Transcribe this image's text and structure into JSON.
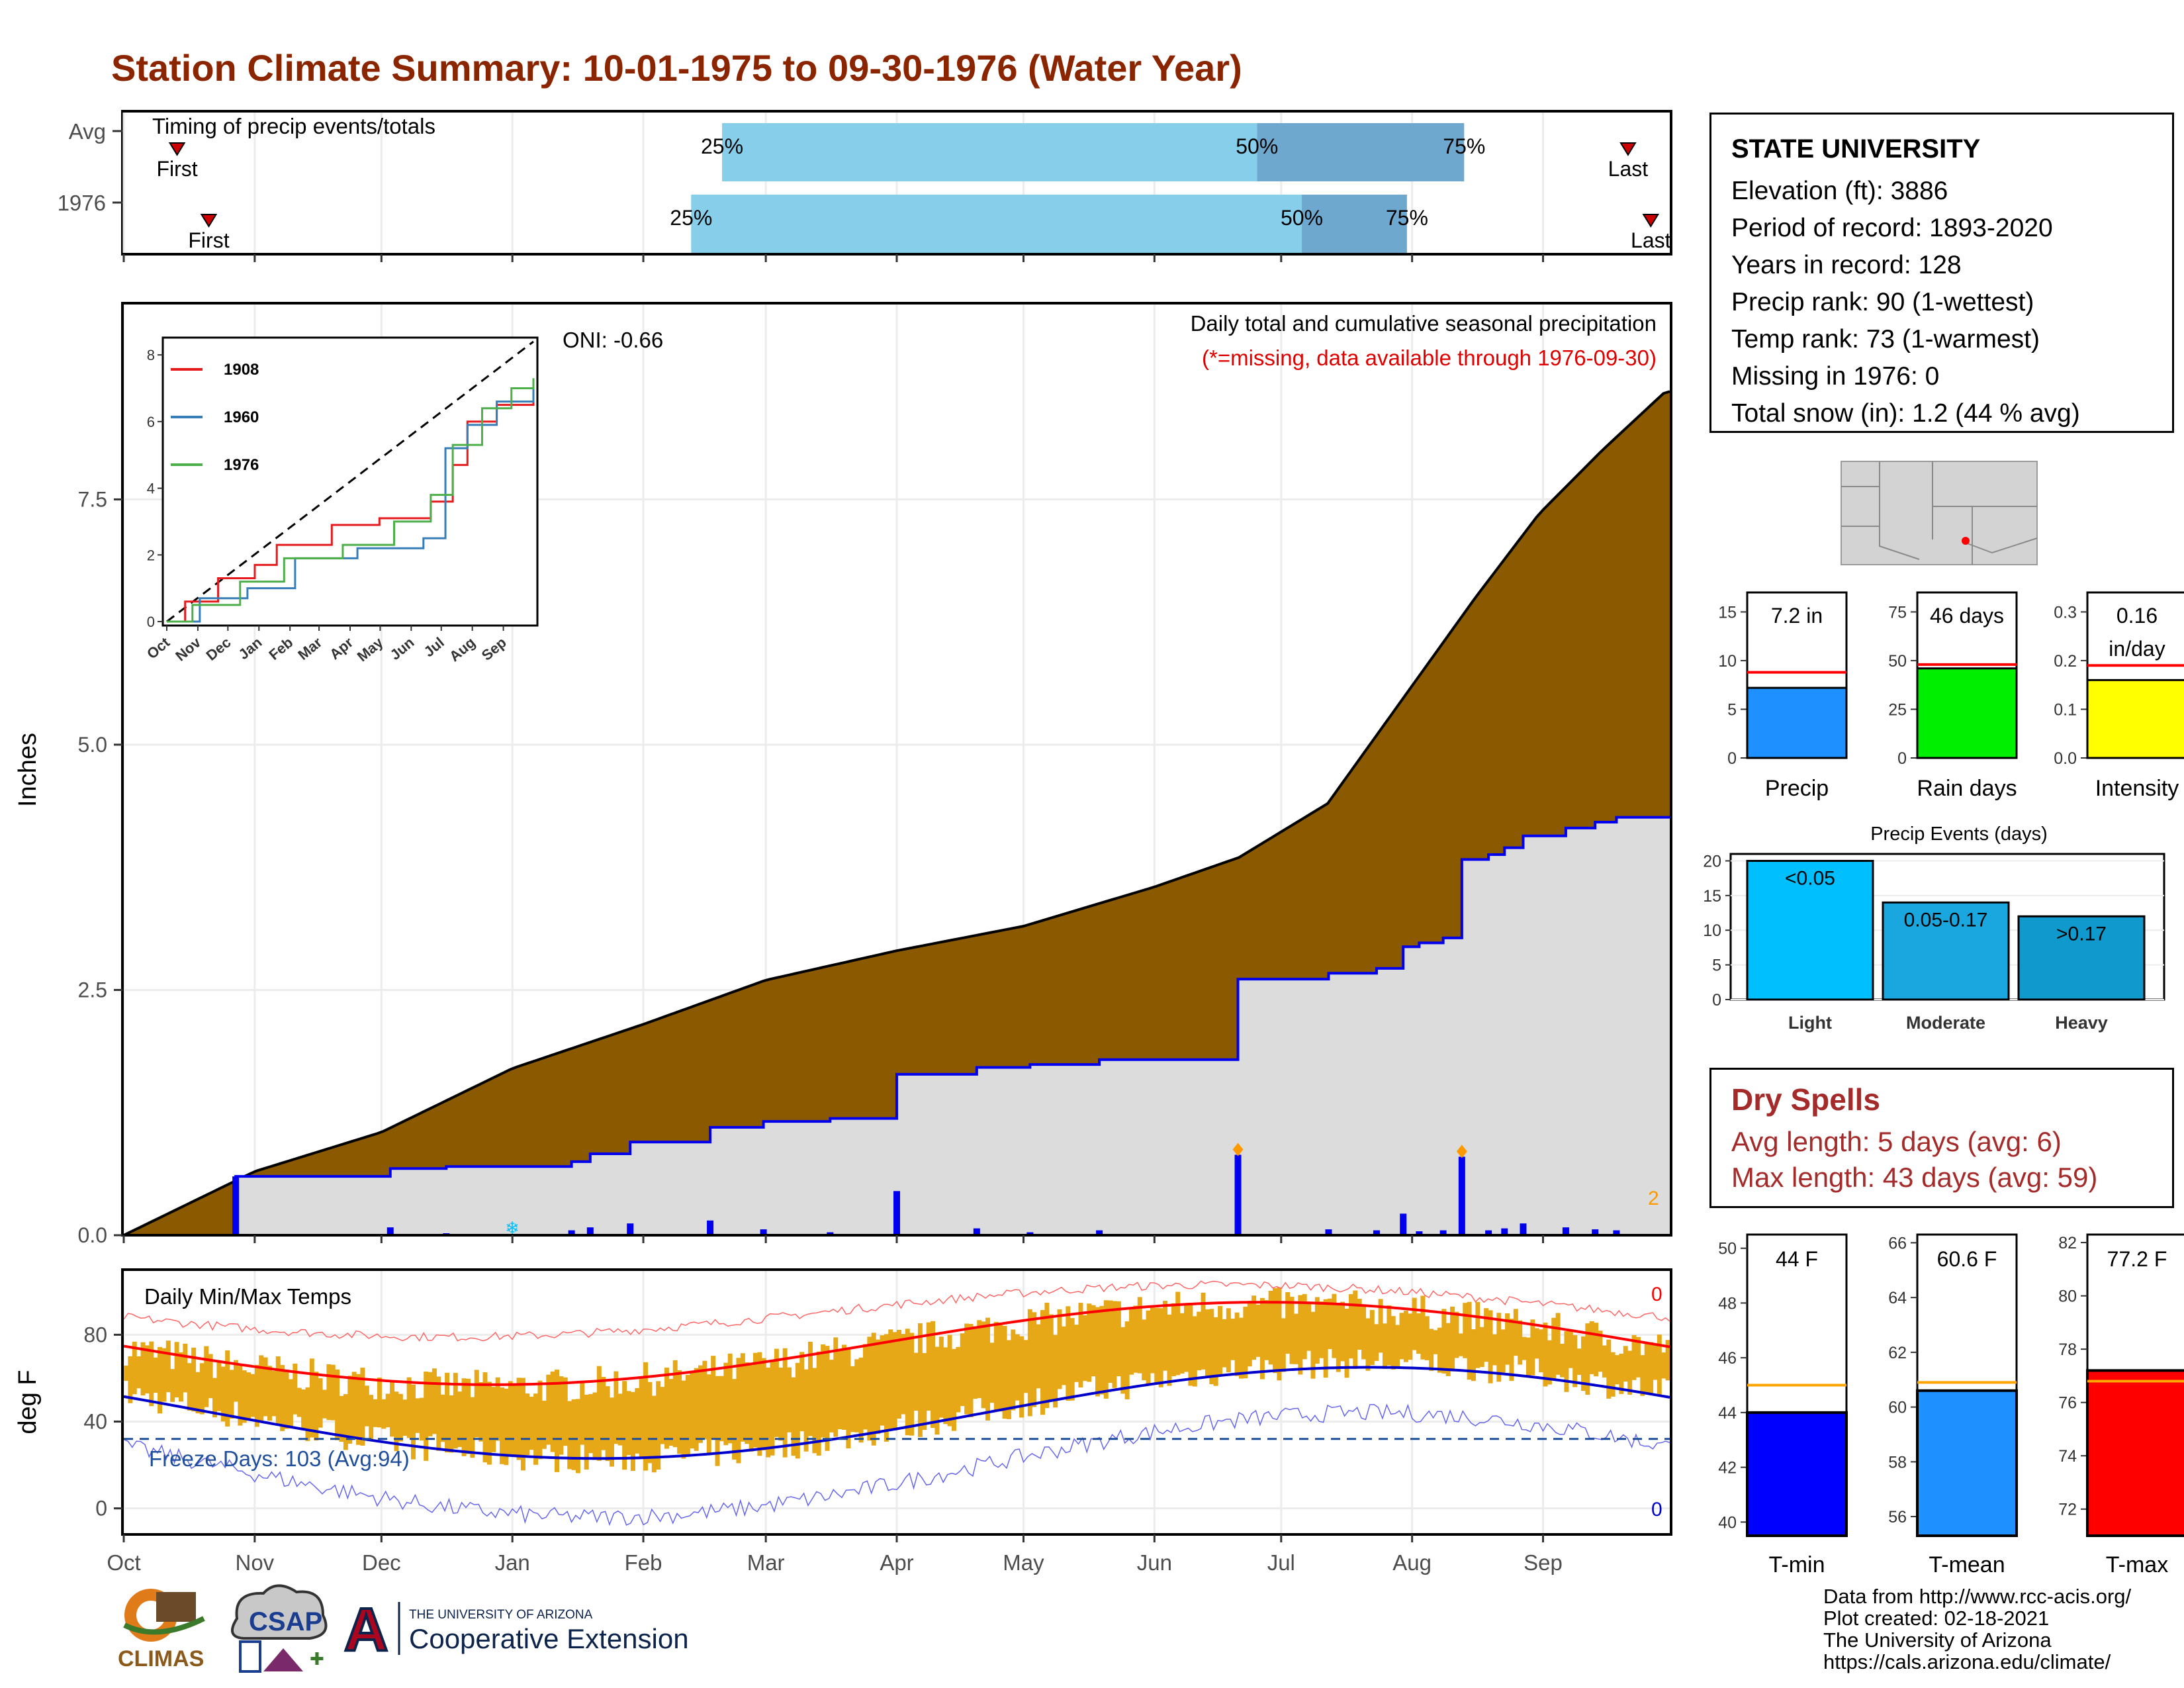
{
  "page": {
    "title": "Station Climate Summary: 10-01-1975 to 09-30-1976 (Water Year)"
  },
  "timing": {
    "title": "Timing of precip events/totals",
    "rows": [
      {
        "label": "Avg",
        "first": 0.0345,
        "last": 0.973,
        "q25": 0.387,
        "q50": 0.733,
        "q75": 0.867,
        "first_label": "First",
        "last_label": "Last",
        "q25_label": "25%",
        "q50_label": "50%",
        "q75_label": "75%"
      },
      {
        "label": "1976",
        "first": 0.055,
        "last": 0.9877,
        "q25": 0.367,
        "q50": 0.762,
        "q75": 0.83,
        "first_label": "First",
        "last_label": "Last",
        "q25_label": "25%",
        "q50_label": "50%",
        "q75_label": "75%"
      }
    ],
    "colors": {
      "light": "#87ceeb",
      "dark": "#6fa8cf",
      "marker": "#cc0000"
    }
  },
  "precip_chart": {
    "title": "Daily total and cumulative seasonal precipitation",
    "subtitle": "(*=missing, data available through 1976-09-30)",
    "oni": "ONI: -0.66",
    "ylabel": "Inches",
    "missing_count": "2",
    "colors": {
      "avg_fill": "#8b5a00",
      "year_fill": "#dcdcdc",
      "year_line": "#0000ee",
      "bars": "#0000ee",
      "marker": "#ff9900",
      "snow": "#00bfff"
    }
  },
  "inset": {
    "ticks_y": [
      "0",
      "2",
      "4",
      "6",
      "8"
    ],
    "months": [
      "Oct",
      "Nov",
      "Dec",
      "Jan",
      "Feb",
      "Mar",
      "Apr",
      "May",
      "Jun",
      "Jul",
      "Aug",
      "Sep"
    ],
    "legend": [
      {
        "name": "1908",
        "color": "#e41a1c"
      },
      {
        "name": "1960",
        "color": "#377eb8"
      },
      {
        "name": "1976",
        "color": "#4daf4a"
      }
    ]
  },
  "temp_chart": {
    "title": "Daily Min/Max Temps",
    "ylabel": "deg F",
    "freeze_label": "Freeze Days: 103 (Avg:94)",
    "top_count": "0",
    "bottom_count": "0",
    "colors": {
      "bars": "#e6a817",
      "max_line": "#ff0000",
      "min_line": "#0000cc",
      "freeze": "#1f4e9c"
    }
  },
  "x_axis": {
    "months": [
      "Oct",
      "Nov",
      "Dec",
      "Jan",
      "Feb",
      "Mar",
      "Apr",
      "May",
      "Jun",
      "Jul",
      "Aug",
      "Sep"
    ]
  },
  "station": {
    "name": "STATE UNIVERSITY",
    "lines": [
      "Elevation (ft): 3886",
      "Period of record: 1893-2020",
      "Years in record: 128",
      "Precip rank: 90 (1-wettest)",
      "Temp rank: 73 (1-warmest)",
      "Missing in 1976: 0",
      "Total snow (in): 1.2 (44 % avg)"
    ]
  },
  "mini_bars": [
    {
      "label": "Precip",
      "value_text": "7.2 in",
      "value": 7.2,
      "avg": 8.8,
      "ylim": [
        0,
        17
      ],
      "ticks": [
        "0",
        "5",
        "10",
        "15"
      ],
      "tick_vals": [
        0,
        5,
        10,
        15
      ],
      "color": "#1e90ff"
    },
    {
      "label": "Rain days",
      "value_text": "46 days",
      "value": 46,
      "avg": 48,
      "ylim": [
        0,
        85
      ],
      "ticks": [
        "0",
        "25",
        "50",
        "75"
      ],
      "tick_vals": [
        0,
        25,
        50,
        75
      ],
      "color": "#00ee00"
    },
    {
      "label": "Intensity",
      "value_text": "0.16 in/day",
      "value_line1": "0.16",
      "value_line2": "in/day",
      "value": 0.16,
      "avg": 0.19,
      "ylim": [
        0,
        0.34
      ],
      "ticks": [
        "0.0",
        "0.1",
        "0.2",
        "0.3"
      ],
      "tick_vals": [
        0,
        0.1,
        0.2,
        0.3
      ],
      "color": "#ffff00"
    }
  ],
  "events": {
    "title": "Precip Events (days)",
    "ticks": [
      "0",
      "5",
      "10",
      "15",
      "20"
    ],
    "bars": [
      {
        "label": "Light",
        "range": "<0.05",
        "value": 20,
        "color": "#00bfff"
      },
      {
        "label": "Moderate",
        "range": "0.05-0.17",
        "value": 14,
        "color": "#1aa7e0"
      },
      {
        "label": "Heavy",
        "range": ">0.17",
        "value": 12,
        "color": "#0f99cc"
      }
    ]
  },
  "dry_spells": {
    "title": "Dry Spells",
    "avg": "Avg length: 5 days (avg: 6)",
    "max": "Max length: 43 days (avg: 59)"
  },
  "temp_bars": [
    {
      "label": "T-min",
      "value_text": "44 F",
      "value": 44,
      "avg": 45,
      "ylim": [
        39.5,
        50.5
      ],
      "ticks": [
        "40",
        "42",
        "44",
        "46",
        "48",
        "50"
      ],
      "tick_vals": [
        40,
        42,
        44,
        46,
        48,
        50
      ],
      "color": "#0000ff"
    },
    {
      "label": "T-mean",
      "value_text": "60.6 F",
      "value": 60.6,
      "avg": 60.9,
      "ylim": [
        55.3,
        66.3
      ],
      "ticks": [
        "56",
        "58",
        "60",
        "62",
        "64",
        "66"
      ],
      "tick_vals": [
        56,
        58,
        60,
        62,
        64,
        66
      ],
      "color": "#1e90ff"
    },
    {
      "label": "T-max",
      "value_text": "77.2 F",
      "value": 77.2,
      "avg": 76.8,
      "ylim": [
        71.0,
        82.3
      ],
      "ticks": [
        "72",
        "74",
        "76",
        "78",
        "80",
        "82"
      ],
      "tick_vals": [
        72,
        74,
        76,
        78,
        80,
        82
      ],
      "color": "#ff0000"
    }
  ],
  "footer": {
    "lines": [
      "Data from http://www.rcc-acis.org/",
      "Plot created: 02-18-2021",
      "The University of Arizona",
      "https://cals.arizona.edu/climate/"
    ]
  },
  "logos": {
    "climas": "CLIMAS",
    "csap": "CSAP",
    "ua_small": "THE UNIVERSITY OF ARIZONA",
    "ua_big": "Cooperative Extension",
    "ua_letter": "A"
  }
}
